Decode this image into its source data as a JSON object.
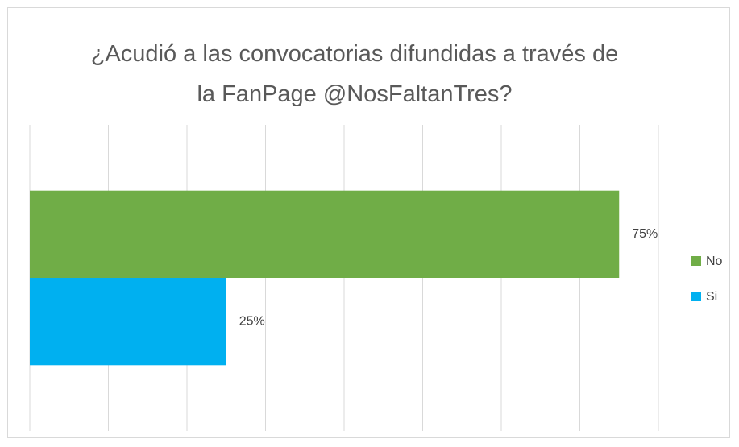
{
  "chart_data": {
    "type": "bar",
    "orientation": "horizontal",
    "title": "¿Acudió a las convocatorias difundidas a través de la FanPage @NosFaltanTres?",
    "categories": [
      null
    ],
    "series": [
      {
        "name": "No",
        "color": "#70ad47",
        "values": [
          75
        ],
        "value_labels": [
          "75%"
        ]
      },
      {
        "name": "Si",
        "color": "#00b0f0",
        "values": [
          25
        ],
        "value_labels": [
          "25%"
        ]
      }
    ],
    "xlim": [
      0,
      80
    ],
    "xticks": [
      0,
      10,
      20,
      30,
      40,
      50,
      60,
      70,
      80
    ],
    "grid": true,
    "legend": "right"
  }
}
